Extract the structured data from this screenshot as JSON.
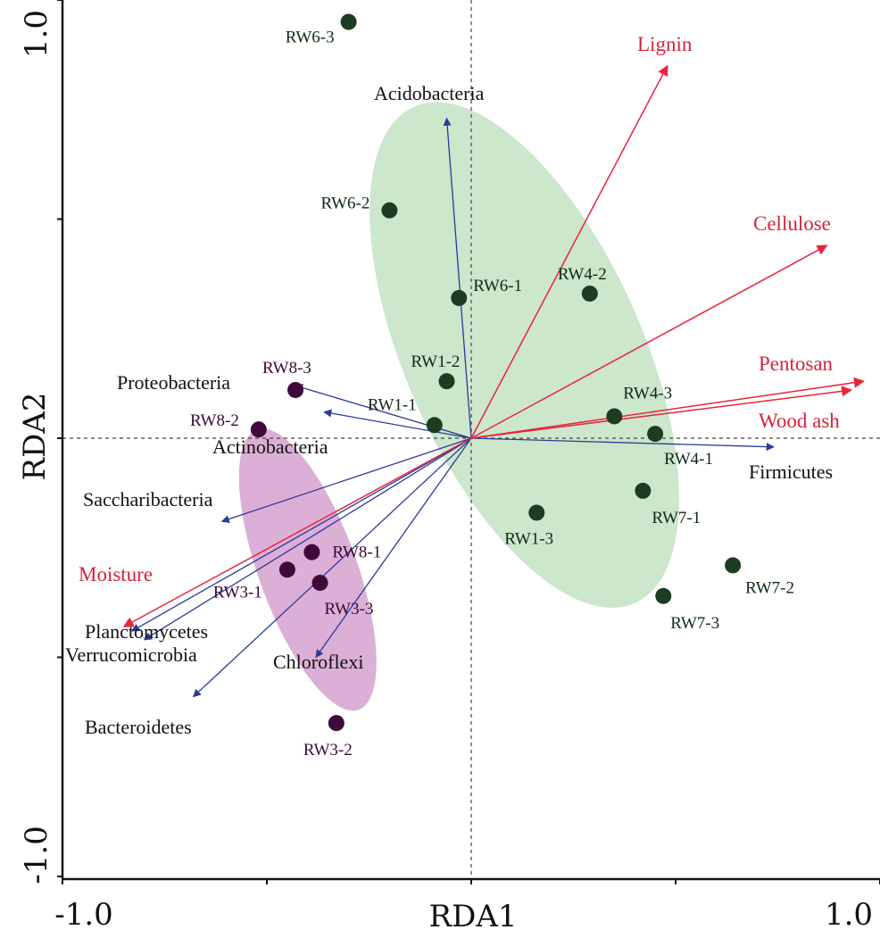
{
  "chart_data": {
    "type": "scatter",
    "subtype": "RDA triplot",
    "xlabel": "RDA1",
    "ylabel": "RDA2",
    "xlim": [
      -1.0,
      1.0
    ],
    "ylim": [
      -1.0,
      1.0
    ],
    "x_tick_labels": [
      "-1.0",
      "1.0"
    ],
    "y_tick_labels": [
      "1.0",
      "-1.0"
    ],
    "reference_lines": "dashed at x=0 and y=0",
    "colors": {
      "sample_green_group": "#1c3d22",
      "sample_purple_group": "#3d0a3a",
      "green_ellipse": "#cce7cc",
      "purple_ellipse": "#dcafd6",
      "taxon_arrow": "#2a3a98",
      "env_arrow": "#e8243c",
      "env_label": "#d8233a"
    },
    "groups": [
      {
        "name": "green-cluster",
        "color": "#cce7cc",
        "center": [
          0.13,
          0.19
        ],
        "semi_axes": [
          0.29,
          0.62
        ],
        "rotation_deg": -24
      },
      {
        "name": "purple-cluster",
        "color": "#dcafd6",
        "center": [
          -0.4,
          -0.3
        ],
        "semi_axes": [
          0.12,
          0.34
        ],
        "rotation_deg": -20
      }
    ],
    "samples": [
      {
        "name": "RW6-3",
        "x": -0.3,
        "y": 0.95,
        "group": "green"
      },
      {
        "name": "RW6-2",
        "x": -0.2,
        "y": 0.52,
        "group": "green"
      },
      {
        "name": "RW6-1",
        "x": -0.03,
        "y": 0.32,
        "group": "green"
      },
      {
        "name": "RW4-2",
        "x": 0.29,
        "y": 0.33,
        "group": "green"
      },
      {
        "name": "RW1-2",
        "x": -0.06,
        "y": 0.13,
        "group": "green"
      },
      {
        "name": "RW1-1",
        "x": -0.09,
        "y": 0.03,
        "group": "green"
      },
      {
        "name": "RW4-3",
        "x": 0.35,
        "y": 0.05,
        "group": "green"
      },
      {
        "name": "RW4-1",
        "x": 0.45,
        "y": 0.01,
        "group": "green"
      },
      {
        "name": "RW7-1",
        "x": 0.42,
        "y": -0.12,
        "group": "green"
      },
      {
        "name": "RW1-3",
        "x": 0.16,
        "y": -0.17,
        "group": "green"
      },
      {
        "name": "RW7-2",
        "x": 0.64,
        "y": -0.29,
        "group": "green"
      },
      {
        "name": "RW7-3",
        "x": 0.47,
        "y": -0.36,
        "group": "green"
      },
      {
        "name": "RW8-3",
        "x": -0.43,
        "y": 0.11,
        "group": "purple"
      },
      {
        "name": "RW8-2",
        "x": -0.52,
        "y": 0.02,
        "group": "purple"
      },
      {
        "name": "RW8-1",
        "x": -0.39,
        "y": -0.26,
        "group": "purple"
      },
      {
        "name": "RW3-1",
        "x": -0.45,
        "y": -0.3,
        "group": "purple"
      },
      {
        "name": "RW3-3",
        "x": -0.37,
        "y": -0.33,
        "group": "purple"
      },
      {
        "name": "RW3-2",
        "x": -0.33,
        "y": -0.65,
        "group": "purple"
      }
    ],
    "taxa": [
      {
        "name": "Acidobacteria",
        "x": -0.06,
        "y": 0.73
      },
      {
        "name": "Proteobacteria",
        "x": -0.43,
        "y": 0.12
      },
      {
        "name": "Actinobacteria",
        "x": -0.36,
        "y": 0.06
      },
      {
        "name": "Saccharibacteria",
        "x": -0.61,
        "y": -0.19
      },
      {
        "name": "Planctomycetes",
        "x": -0.83,
        "y": -0.44
      },
      {
        "name": "Verrucomicrobia",
        "x": -0.8,
        "y": -0.46
      },
      {
        "name": "Chloroflexi",
        "x": -0.38,
        "y": -0.5
      },
      {
        "name": "Bacteroidetes",
        "x": -0.68,
        "y": -0.59
      },
      {
        "name": "Firmicutes",
        "x": 0.74,
        "y": -0.02
      }
    ],
    "environmental_factors": [
      {
        "name": "Lignin",
        "x": 0.48,
        "y": 0.85
      },
      {
        "name": "Cellulose",
        "x": 0.87,
        "y": 0.44
      },
      {
        "name": "Pentosan",
        "x": 0.96,
        "y": 0.13
      },
      {
        "name": "Wood ash",
        "x": 0.93,
        "y": 0.11
      },
      {
        "name": "Moisture",
        "x": -0.85,
        "y": -0.43
      }
    ]
  }
}
